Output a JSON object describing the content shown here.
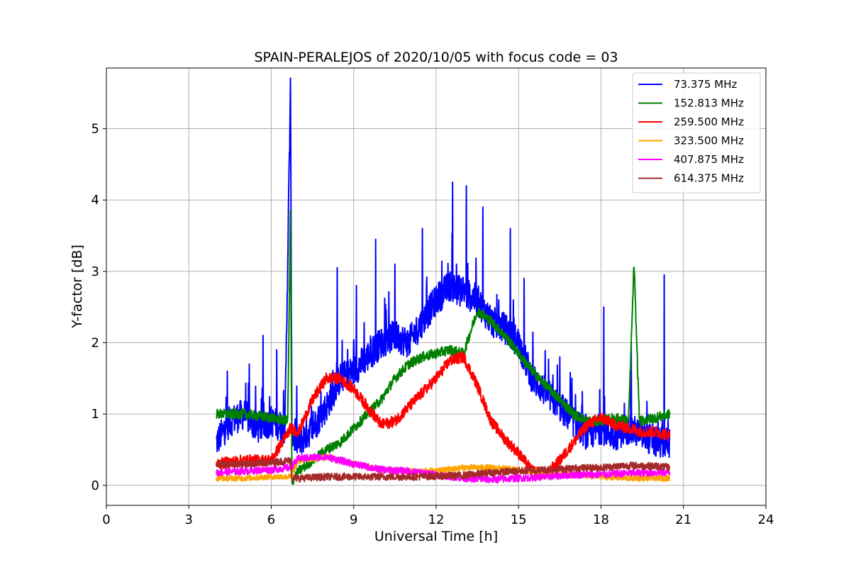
{
  "chart_data": {
    "type": "line",
    "title": "SPAIN-PERALEJOS of 2020/10/05 with focus code = 03",
    "xlabel": "Universal Time [h]",
    "ylabel": "Y-factor [dB]",
    "xlim": [
      0,
      24
    ],
    "ylim": [
      -0.28,
      5.85
    ],
    "xticks": [
      0,
      3,
      6,
      9,
      12,
      15,
      18,
      21,
      24
    ],
    "yticks": [
      0,
      1,
      2,
      3,
      4,
      5
    ],
    "xtick_labels": [
      "0",
      "3",
      "6",
      "9",
      "12",
      "15",
      "18",
      "21",
      "24"
    ],
    "ytick_labels": [
      "0",
      "1",
      "2",
      "3",
      "4",
      "5"
    ],
    "grid": true,
    "legend_position": "upper-right",
    "series": [
      {
        "name": " 73.375 MHz",
        "color": "#0000ff",
        "x": [
          4.0,
          4.5,
          5.0,
          5.5,
          6.0,
          6.5,
          6.7,
          6.75,
          7.0,
          7.5,
          8.0,
          8.5,
          9.0,
          9.5,
          10.0,
          10.5,
          11.0,
          11.5,
          12.0,
          12.5,
          13.0,
          13.5,
          14.0,
          14.5,
          15.0,
          15.5,
          16.0,
          16.5,
          17.0,
          17.5,
          18.0,
          18.5,
          19.0,
          19.5,
          20.0,
          20.5
        ],
        "values": [
          0.6,
          0.9,
          1.0,
          0.8,
          0.9,
          0.8,
          5.55,
          0.7,
          0.6,
          0.8,
          1.1,
          1.5,
          1.6,
          1.8,
          2.0,
          2.1,
          2.0,
          2.3,
          2.6,
          2.8,
          2.7,
          2.6,
          2.3,
          2.2,
          2.0,
          1.5,
          1.3,
          1.1,
          0.9,
          0.7,
          0.8,
          0.7,
          0.8,
          0.7,
          0.6,
          0.6
        ],
        "spikes": [
          [
            4.4,
            1.6
          ],
          [
            5.2,
            1.7
          ],
          [
            5.7,
            2.1
          ],
          [
            6.2,
            1.9
          ],
          [
            8.4,
            3.05
          ],
          [
            9.1,
            2.8
          ],
          [
            9.8,
            3.45
          ],
          [
            10.5,
            3.1
          ],
          [
            11.5,
            3.6
          ],
          [
            12.6,
            4.25
          ],
          [
            13.1,
            4.2
          ],
          [
            13.7,
            3.9
          ],
          [
            14.7,
            3.6
          ],
          [
            15.2,
            2.9
          ],
          [
            16.5,
            1.8
          ],
          [
            18.1,
            2.5
          ],
          [
            19.1,
            2.0
          ],
          [
            20.3,
            2.95
          ]
        ]
      },
      {
        "name": "152.813 MHz",
        "color": "#008000",
        "x": [
          4.0,
          5.0,
          6.0,
          6.6,
          6.7,
          6.75,
          7.0,
          7.5,
          8.0,
          8.5,
          9.0,
          9.5,
          10.0,
          10.5,
          11.0,
          11.5,
          12.0,
          12.5,
          13.0,
          13.5,
          14.0,
          14.5,
          15.0,
          15.5,
          16.0,
          16.5,
          17.0,
          17.5,
          18.0,
          18.5,
          19.0,
          19.2,
          19.4,
          20.0,
          20.5
        ],
        "values": [
          1.0,
          1.0,
          0.95,
          0.9,
          3.85,
          0.05,
          0.2,
          0.35,
          0.5,
          0.6,
          0.8,
          1.0,
          1.2,
          1.5,
          1.7,
          1.8,
          1.85,
          1.9,
          1.85,
          2.45,
          2.3,
          2.1,
          1.85,
          1.6,
          1.4,
          1.2,
          1.0,
          0.9,
          0.9,
          0.95,
          0.9,
          3.1,
          0.9,
          0.95,
          1.0
        ]
      },
      {
        "name": "259.500 MHz",
        "color": "#ff0000",
        "x": [
          4.0,
          5.0,
          6.0,
          6.7,
          7.0,
          7.5,
          8.0,
          8.5,
          9.0,
          9.5,
          10.0,
          10.5,
          11.0,
          11.5,
          12.0,
          12.5,
          13.0,
          13.5,
          14.0,
          14.5,
          15.0,
          15.5,
          16.0,
          16.5,
          17.0,
          17.5,
          18.0,
          18.5,
          19.0,
          19.5,
          20.0,
          20.5
        ],
        "values": [
          0.3,
          0.35,
          0.35,
          0.8,
          0.75,
          1.2,
          1.5,
          1.5,
          1.35,
          1.1,
          0.85,
          0.9,
          1.1,
          1.3,
          1.5,
          1.75,
          1.8,
          1.4,
          0.9,
          0.65,
          0.45,
          0.2,
          0.15,
          0.35,
          0.6,
          0.85,
          0.95,
          0.85,
          0.8,
          0.75,
          0.75,
          0.7
        ]
      },
      {
        "name": "323.500 MHz",
        "color": "#ffa500",
        "x": [
          4.0,
          5.0,
          6.0,
          6.7,
          7.0,
          8.0,
          9.0,
          10.0,
          11.0,
          12.0,
          13.0,
          14.0,
          15.0,
          16.0,
          17.0,
          18.0,
          19.0,
          20.0,
          20.5
        ],
        "values": [
          0.1,
          0.1,
          0.12,
          0.12,
          0.35,
          0.4,
          0.3,
          0.22,
          0.2,
          0.2,
          0.25,
          0.25,
          0.22,
          0.18,
          0.15,
          0.12,
          0.1,
          0.1,
          0.1
        ]
      },
      {
        "name": "407.875 MHz",
        "color": "#ff00ff",
        "x": [
          4.0,
          5.0,
          6.0,
          6.7,
          7.0,
          8.0,
          8.5,
          9.0,
          10.0,
          11.0,
          12.0,
          13.0,
          14.0,
          15.0,
          16.0,
          17.0,
          18.0,
          19.0,
          20.0,
          20.5
        ],
        "values": [
          0.18,
          0.2,
          0.22,
          0.25,
          0.38,
          0.4,
          0.35,
          0.3,
          0.22,
          0.2,
          0.15,
          0.1,
          0.08,
          0.1,
          0.12,
          0.15,
          0.15,
          0.17,
          0.18,
          0.18
        ]
      },
      {
        "name": "614.375 MHz",
        "color": "#a52a2a",
        "x": [
          4.0,
          5.0,
          6.0,
          6.7,
          6.75,
          7.0,
          8.0,
          9.0,
          10.0,
          11.0,
          12.0,
          13.0,
          14.0,
          15.0,
          16.0,
          17.0,
          18.0,
          19.0,
          20.0,
          20.5
        ],
        "values": [
          0.3,
          0.3,
          0.32,
          0.35,
          0.1,
          0.1,
          0.12,
          0.12,
          0.12,
          0.12,
          0.13,
          0.14,
          0.18,
          0.2,
          0.22,
          0.24,
          0.25,
          0.28,
          0.27,
          0.25
        ]
      }
    ]
  }
}
